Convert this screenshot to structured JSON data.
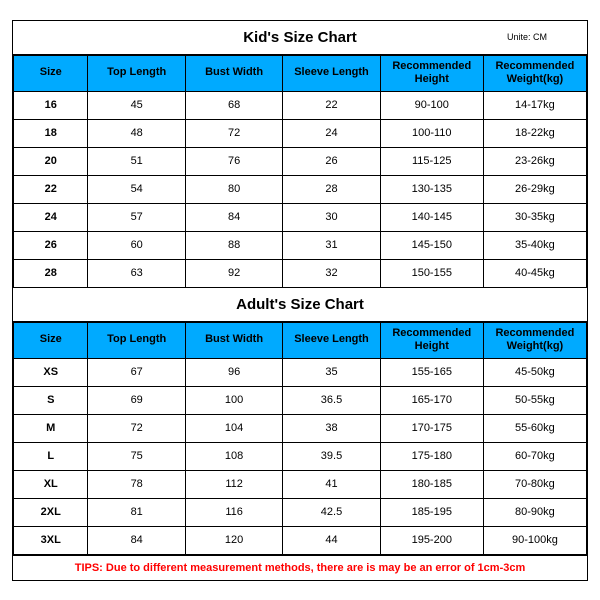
{
  "unite_label": "Unite: CM",
  "kids": {
    "title": "Kid's Size Chart",
    "columns": [
      {
        "l1": "Size"
      },
      {
        "l1": "Top Length"
      },
      {
        "l1": "Bust Width"
      },
      {
        "l1": "Sleeve Length"
      },
      {
        "l1": "Recommended",
        "l2": "Height"
      },
      {
        "l1": "Recommended",
        "l2": "Weight(kg)"
      }
    ],
    "rows": [
      [
        "16",
        "45",
        "68",
        "22",
        "90-100",
        "14-17kg"
      ],
      [
        "18",
        "48",
        "72",
        "24",
        "100-110",
        "18-22kg"
      ],
      [
        "20",
        "51",
        "76",
        "26",
        "115-125",
        "23-26kg"
      ],
      [
        "22",
        "54",
        "80",
        "28",
        "130-135",
        "26-29kg"
      ],
      [
        "24",
        "57",
        "84",
        "30",
        "140-145",
        "30-35kg"
      ],
      [
        "26",
        "60",
        "88",
        "31",
        "145-150",
        "35-40kg"
      ],
      [
        "28",
        "63",
        "92",
        "32",
        "150-155",
        "40-45kg"
      ]
    ]
  },
  "adults": {
    "title": "Adult's Size Chart",
    "columns": [
      {
        "l1": "Size"
      },
      {
        "l1": "Top Length"
      },
      {
        "l1": "Bust Width"
      },
      {
        "l1": "Sleeve Length"
      },
      {
        "l1": "Recommended",
        "l2": "Height"
      },
      {
        "l1": "Recommended",
        "l2": "Weight(kg)"
      }
    ],
    "rows": [
      [
        "XS",
        "67",
        "96",
        "35",
        "155-165",
        "45-50kg"
      ],
      [
        "S",
        "69",
        "100",
        "36.5",
        "165-170",
        "50-55kg"
      ],
      [
        "M",
        "72",
        "104",
        "38",
        "170-175",
        "55-60kg"
      ],
      [
        "L",
        "75",
        "108",
        "39.5",
        "175-180",
        "60-70kg"
      ],
      [
        "XL",
        "78",
        "112",
        "41",
        "180-185",
        "70-80kg"
      ],
      [
        "2XL",
        "81",
        "116",
        "42.5",
        "185-195",
        "80-90kg"
      ],
      [
        "3XL",
        "84",
        "120",
        "44",
        "195-200",
        "90-100kg"
      ]
    ]
  },
  "tips": "TIPS: Due to different measurement methods, there are is may be an error of 1cm-3cm",
  "style": {
    "header_bg": "#00aaff",
    "border_color": "#000000",
    "tips_color": "#ff0000",
    "background": "#ffffff",
    "title_fontsize": 15,
    "header_fontsize": 11,
    "cell_fontsize": 11
  }
}
